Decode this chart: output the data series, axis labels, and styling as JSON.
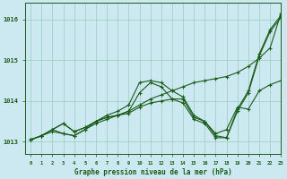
{
  "title": "Graphe pression niveau de la mer (hPa)",
  "bg_color": "#cce8f0",
  "grid_color": "#99ccbb",
  "line_color": "#1a5c1a",
  "marker_color": "#1a5c1a",
  "xlim": [
    -0.5,
    23
  ],
  "ylim": [
    1012.7,
    1016.4
  ],
  "yticks": [
    1013,
    1014,
    1015,
    1016
  ],
  "xticks": [
    0,
    1,
    2,
    3,
    4,
    5,
    6,
    7,
    8,
    9,
    10,
    11,
    12,
    13,
    14,
    15,
    16,
    17,
    18,
    19,
    20,
    21,
    22,
    23
  ],
  "series": [
    {
      "x": [
        0,
        1,
        2,
        3,
        4,
        5,
        6,
        7,
        8,
        9,
        10,
        11,
        12,
        13,
        14,
        15,
        16,
        17,
        18,
        19,
        20,
        21,
        22,
        23
      ],
      "y": [
        1013.05,
        1013.15,
        1013.25,
        1013.2,
        1013.15,
        1013.3,
        1013.45,
        1013.55,
        1013.65,
        1013.75,
        1013.9,
        1014.05,
        1014.15,
        1014.25,
        1014.35,
        1014.45,
        1014.5,
        1014.55,
        1014.6,
        1014.7,
        1014.85,
        1015.05,
        1015.3,
        1016.15
      ]
    },
    {
      "x": [
        0,
        1,
        2,
        3,
        4,
        5,
        6,
        7,
        8,
        9,
        10,
        11,
        12,
        13,
        14,
        15,
        16,
        17,
        18,
        19,
        20,
        21,
        22,
        23
      ],
      "y": [
        1013.05,
        1013.15,
        1013.3,
        1013.2,
        1013.15,
        1013.3,
        1013.5,
        1013.65,
        1013.75,
        1013.9,
        1014.45,
        1014.5,
        1014.45,
        1014.25,
        1014.1,
        1013.65,
        1013.5,
        1013.15,
        1013.1,
        1013.8,
        1014.25,
        1015.15,
        1015.75,
        1016.1
      ]
    },
    {
      "x": [
        0,
        1,
        2,
        3,
        4,
        5,
        6,
        7,
        8,
        9,
        10,
        11,
        12,
        13,
        14,
        15,
        16,
        17,
        18,
        19,
        20,
        21,
        22,
        23
      ],
      "y": [
        1013.05,
        1013.15,
        1013.3,
        1013.45,
        1013.25,
        1013.35,
        1013.5,
        1013.6,
        1013.65,
        1013.75,
        1014.2,
        1014.45,
        1014.35,
        1014.05,
        1013.95,
        1013.55,
        1013.45,
        1013.1,
        1013.1,
        1013.75,
        1014.2,
        1015.1,
        1015.7,
        1016.05
      ]
    },
    {
      "x": [
        0,
        1,
        2,
        3,
        4,
        5,
        6,
        7,
        8,
        9,
        10,
        11,
        12,
        13,
        14,
        15,
        16,
        17,
        18,
        19,
        20,
        21,
        22,
        23
      ],
      "y": [
        1013.05,
        1013.15,
        1013.3,
        1013.45,
        1013.25,
        1013.35,
        1013.5,
        1013.6,
        1013.65,
        1013.7,
        1013.85,
        1013.95,
        1014.0,
        1014.05,
        1014.05,
        1013.6,
        1013.5,
        1013.2,
        1013.3,
        1013.85,
        1013.8,
        1014.25,
        1014.4,
        1014.5
      ]
    }
  ]
}
